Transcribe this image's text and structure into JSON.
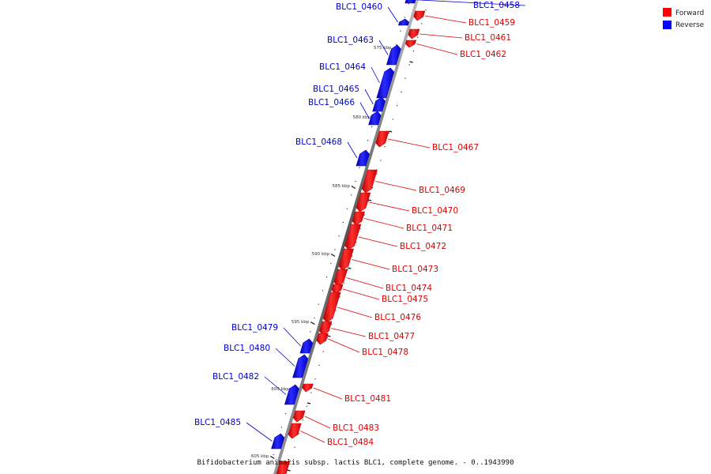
{
  "legend": [
    {
      "label": "Forward",
      "color": "#ff0000"
    },
    {
      "label": "Reverse",
      "color": "#0000ff"
    }
  ],
  "caption": "Bifidobacterium animalis subsp. lactis BLC1, complete genome. - 0..1943990",
  "scale_ticks": [
    "575 kbp",
    "580 kbp",
    "585 kbp",
    "590 kbp",
    "595 kbp",
    "600 kbp",
    "605 kbp"
  ],
  "genes": [
    {
      "name": "BLC1_0458",
      "strand": "reverse"
    },
    {
      "name": "BLC1_0459",
      "strand": "forward"
    },
    {
      "name": "BLC1_0460",
      "strand": "reverse"
    },
    {
      "name": "BLC1_0461",
      "strand": "forward"
    },
    {
      "name": "BLC1_0462",
      "strand": "forward"
    },
    {
      "name": "BLC1_0463",
      "strand": "reverse"
    },
    {
      "name": "BLC1_0464",
      "strand": "reverse"
    },
    {
      "name": "BLC1_0465",
      "strand": "reverse"
    },
    {
      "name": "BLC1_0466",
      "strand": "reverse"
    },
    {
      "name": "BLC1_0467",
      "strand": "forward"
    },
    {
      "name": "BLC1_0468",
      "strand": "reverse"
    },
    {
      "name": "BLC1_0469",
      "strand": "forward"
    },
    {
      "name": "BLC1_0470",
      "strand": "forward"
    },
    {
      "name": "BLC1_0471",
      "strand": "forward"
    },
    {
      "name": "BLC1_0472",
      "strand": "forward"
    },
    {
      "name": "BLC1_0473",
      "strand": "forward"
    },
    {
      "name": "BLC1_0474",
      "strand": "forward"
    },
    {
      "name": "BLC1_0475",
      "strand": "forward"
    },
    {
      "name": "BLC1_0476",
      "strand": "forward"
    },
    {
      "name": "BLC1_0477",
      "strand": "forward"
    },
    {
      "name": "BLC1_0478",
      "strand": "forward"
    },
    {
      "name": "BLC1_0479",
      "strand": "reverse"
    },
    {
      "name": "BLC1_0480",
      "strand": "reverse"
    },
    {
      "name": "BLC1_0481",
      "strand": "forward"
    },
    {
      "name": "BLC1_0482",
      "strand": "reverse"
    },
    {
      "name": "BLC1_0483",
      "strand": "forward"
    },
    {
      "name": "BLC1_0484",
      "strand": "forward"
    },
    {
      "name": "BLC1_0485",
      "strand": "reverse"
    }
  ]
}
